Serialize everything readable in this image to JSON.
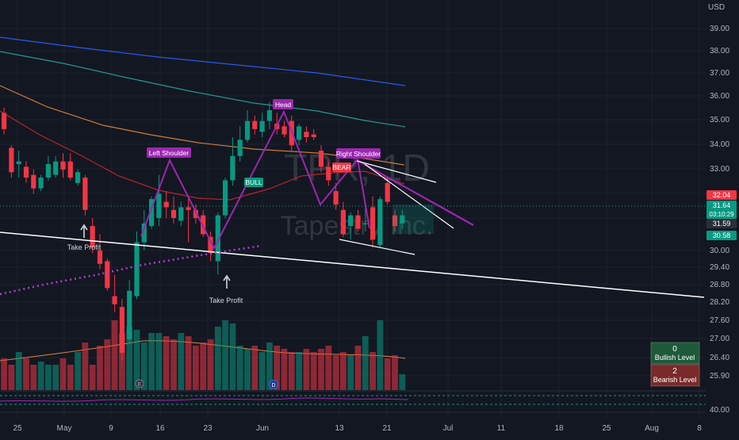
{
  "chart_data": {
    "type": "candlestick",
    "symbol": "TPR, 1D",
    "company": "Tapestry Inc.",
    "currency": "USD",
    "price_axis_ticks": [
      "39.00",
      "38.00",
      "37.00",
      "36.00",
      "35.00",
      "34.00",
      "33.00",
      "32.00",
      "31.00",
      "30.00",
      "29.40",
      "28.80",
      "28.20",
      "27.60",
      "27.00",
      "26.40",
      "25.90"
    ],
    "indicator_tick": "40.00",
    "date_ticks": [
      "25",
      "May",
      "9",
      "16",
      "23",
      "Jun",
      "13",
      "21",
      "Jul",
      "11",
      "18",
      "25",
      "Aug",
      "8"
    ],
    "price_tags": [
      {
        "value": "32.04",
        "color": "#f23645"
      },
      {
        "value": "31.64",
        "color": "#089981"
      },
      {
        "value": "03:10:29",
        "color": "#089981"
      },
      {
        "value": "31.59",
        "color": "#2a2e39"
      },
      {
        "value": "30.58",
        "color": "#089981"
      }
    ],
    "pattern_labels": [
      {
        "text": "Left Shoulder",
        "color": "#9c27b0"
      },
      {
        "text": "Head",
        "color": "#9c27b0"
      },
      {
        "text": "Right Shoulder",
        "color": "#9c27b0"
      },
      {
        "text": "BULL",
        "color": "#089981"
      },
      {
        "text": "BEAR",
        "color": "#f23645"
      }
    ],
    "annotations": [
      "Take Profit",
      "Take Profit"
    ],
    "levels": [
      {
        "count": "0",
        "label": "Bullish Level",
        "color": "#1e5a3a"
      },
      {
        "count": "2",
        "label": "Bearish Level",
        "color": "#7a2a2a"
      }
    ],
    "candles": [
      {
        "o": 35.4,
        "h": 35.6,
        "l": 34.6,
        "c": 34.8
      },
      {
        "o": 34.1,
        "h": 34.2,
        "l": 33.0,
        "c": 33.2
      },
      {
        "o": 33.5,
        "h": 34.0,
        "l": 33.0,
        "c": 33.6
      },
      {
        "o": 33.4,
        "h": 33.6,
        "l": 32.8,
        "c": 33.0
      },
      {
        "o": 33.1,
        "h": 33.3,
        "l": 32.4,
        "c": 32.6
      },
      {
        "o": 32.6,
        "h": 33.1,
        "l": 32.5,
        "c": 33.0
      },
      {
        "o": 33.0,
        "h": 33.8,
        "l": 32.9,
        "c": 33.5
      },
      {
        "o": 33.1,
        "h": 33.8,
        "l": 33.0,
        "c": 33.6
      },
      {
        "o": 33.6,
        "h": 33.9,
        "l": 33.0,
        "c": 33.3
      },
      {
        "o": 33.6,
        "h": 33.9,
        "l": 32.9,
        "c": 33.0
      },
      {
        "o": 32.8,
        "h": 33.3,
        "l": 32.7,
        "c": 33.2
      },
      {
        "o": 33.0,
        "h": 33.1,
        "l": 31.6,
        "c": 31.8
      },
      {
        "o": 31.2,
        "h": 31.5,
        "l": 30.2,
        "c": 30.4
      },
      {
        "o": 30.3,
        "h": 30.9,
        "l": 29.6,
        "c": 29.8
      },
      {
        "o": 29.9,
        "h": 30.0,
        "l": 28.8,
        "c": 28.9
      },
      {
        "o": 28.6,
        "h": 29.4,
        "l": 28.0,
        "c": 28.3
      },
      {
        "o": 28.2,
        "h": 28.5,
        "l": 26.2,
        "c": 26.5
      },
      {
        "o": 27.0,
        "h": 29.2,
        "l": 26.9,
        "c": 28.8
      },
      {
        "o": 28.6,
        "h": 31.0,
        "l": 28.5,
        "c": 30.6
      },
      {
        "o": 30.6,
        "h": 31.8,
        "l": 30.3,
        "c": 31.3
      },
      {
        "o": 31.2,
        "h": 32.3,
        "l": 31.1,
        "c": 32.2
      },
      {
        "o": 31.5,
        "h": 33.1,
        "l": 31.2,
        "c": 32.4
      },
      {
        "o": 32.1,
        "h": 32.5,
        "l": 31.5,
        "c": 31.9
      },
      {
        "o": 31.8,
        "h": 32.3,
        "l": 31.3,
        "c": 31.5
      },
      {
        "o": 31.4,
        "h": 32.1,
        "l": 31.2,
        "c": 31.9
      },
      {
        "o": 31.9,
        "h": 32.3,
        "l": 30.6,
        "c": 31.8
      },
      {
        "o": 31.8,
        "h": 32.0,
        "l": 31.3,
        "c": 31.5
      },
      {
        "o": 31.6,
        "h": 31.8,
        "l": 30.8,
        "c": 30.9
      },
      {
        "o": 30.8,
        "h": 31.0,
        "l": 29.9,
        "c": 30.2
      },
      {
        "o": 29.9,
        "h": 31.7,
        "l": 29.4,
        "c": 31.6
      },
      {
        "o": 31.6,
        "h": 33.0,
        "l": 31.5,
        "c": 32.9
      },
      {
        "o": 32.9,
        "h": 34.5,
        "l": 32.7,
        "c": 33.8
      },
      {
        "o": 33.8,
        "h": 34.9,
        "l": 33.6,
        "c": 34.4
      },
      {
        "o": 34.4,
        "h": 35.5,
        "l": 34.3,
        "c": 35.1
      },
      {
        "o": 35.1,
        "h": 35.3,
        "l": 34.6,
        "c": 34.8
      },
      {
        "o": 34.7,
        "h": 35.4,
        "l": 34.5,
        "c": 35.1
      },
      {
        "o": 35.1,
        "h": 35.8,
        "l": 34.8,
        "c": 35.5
      },
      {
        "o": 35.0,
        "h": 35.4,
        "l": 34.6,
        "c": 34.8
      },
      {
        "o": 34.9,
        "h": 35.1,
        "l": 34.5,
        "c": 34.6
      },
      {
        "o": 35.1,
        "h": 35.3,
        "l": 34.0,
        "c": 34.2
      },
      {
        "o": 34.4,
        "h": 35.0,
        "l": 34.2,
        "c": 34.9
      },
      {
        "o": 34.7,
        "h": 34.9,
        "l": 34.3,
        "c": 34.5
      },
      {
        "o": 34.6,
        "h": 34.8,
        "l": 34.4,
        "c": 34.5
      },
      {
        "o": 34.0,
        "h": 34.2,
        "l": 33.2,
        "c": 33.4
      },
      {
        "o": 33.4,
        "h": 33.6,
        "l": 32.7,
        "c": 32.9
      },
      {
        "o": 32.5,
        "h": 32.8,
        "l": 31.8,
        "c": 32.0
      },
      {
        "o": 31.8,
        "h": 32.1,
        "l": 30.8,
        "c": 30.9
      },
      {
        "o": 31.2,
        "h": 31.7,
        "l": 30.7,
        "c": 31.6
      },
      {
        "o": 31.6,
        "h": 31.8,
        "l": 31.0,
        "c": 31.1
      },
      {
        "o": 31.3,
        "h": 32.0,
        "l": 31.0,
        "c": 31.3
      },
      {
        "o": 31.9,
        "h": 32.3,
        "l": 30.4,
        "c": 30.7
      },
      {
        "o": 30.5,
        "h": 32.3,
        "l": 30.4,
        "c": 32.2
      },
      {
        "o": 32.8,
        "h": 33.0,
        "l": 32.0,
        "c": 32.1
      },
      {
        "o": 31.6,
        "h": 31.8,
        "l": 31.0,
        "c": 31.2
      },
      {
        "o": 31.3,
        "h": 31.8,
        "l": 31.1,
        "c": 31.6
      }
    ],
    "volumes": [
      0.1,
      0.08,
      0.12,
      0.1,
      0.08,
      0.09,
      0.08,
      0.08,
      0.1,
      0.08,
      0.12,
      0.15,
      0.08,
      0.14,
      0.16,
      0.22,
      0.18,
      0.2,
      0.19,
      0.15,
      0.18,
      0.18,
      0.17,
      0.16,
      0.18,
      0.17,
      0.14,
      0.15,
      0.16,
      0.2,
      0.22,
      0.21,
      0.14,
      0.13,
      0.14,
      0.12,
      0.15,
      0.14,
      0.13,
      0.12,
      0.12,
      0.13,
      0.12,
      0.13,
      0.14,
      0.11,
      0.12,
      0.11,
      0.14,
      0.17,
      0.12,
      0.22,
      0.1,
      0.11,
      0.05
    ]
  }
}
